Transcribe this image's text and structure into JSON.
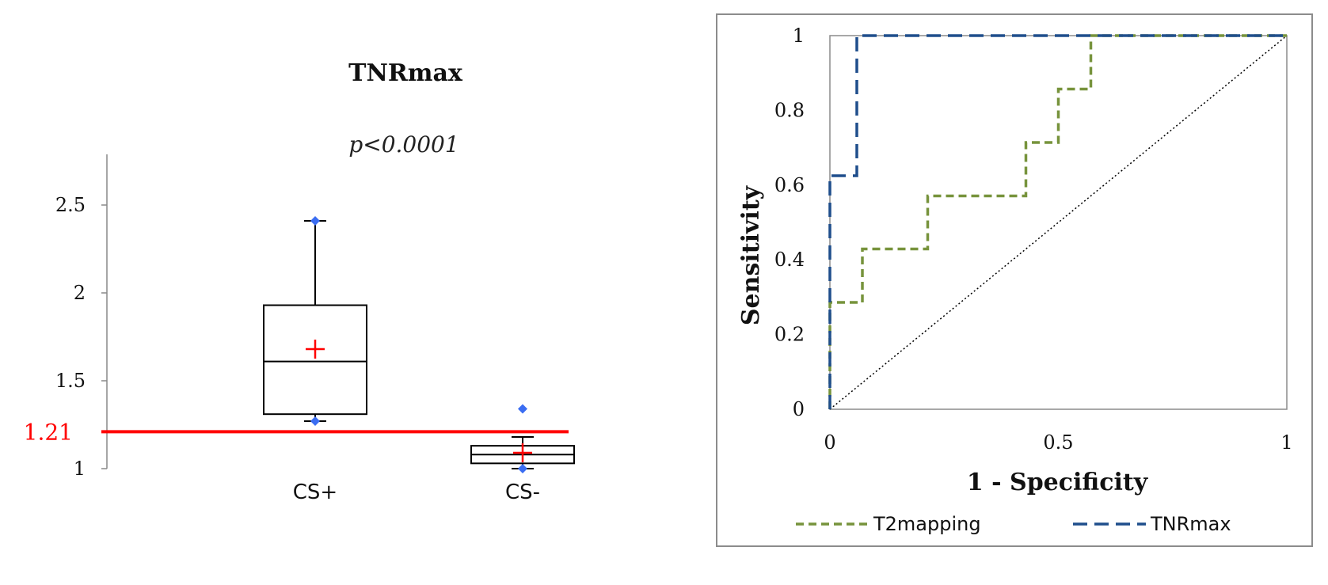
{
  "chart_data": [
    {
      "type": "box",
      "title": "TNRmax",
      "subtitle": "p<0.0001",
      "categories": [
        "CS+",
        "CS-"
      ],
      "yticks": [
        "1",
        "1.5",
        "2",
        "2.5"
      ],
      "ylim": [
        1,
        2.8
      ],
      "threshold": {
        "label": "1.21",
        "value": 1.21,
        "color": "#ff0000"
      },
      "boxes": [
        {
          "category": "CS+",
          "min": 1.27,
          "q1": 1.31,
          "median": 1.61,
          "q3": 1.93,
          "max": 2.41,
          "mean": 1.68,
          "outliers": [
            2.41,
            1.27
          ]
        },
        {
          "category": "CS-",
          "min": 1.0,
          "q1": 1.03,
          "median": 1.08,
          "q3": 1.13,
          "max": 1.18,
          "mean": 1.09,
          "outliers": [
            1.34,
            1.0
          ]
        }
      ],
      "colors": {
        "mean_marker": "#ff0000",
        "outlier": "#3b6df2",
        "box": "#000000"
      }
    },
    {
      "type": "line",
      "xlabel": "1 - Specificity",
      "ylabel": "Sensitivity",
      "xlim": [
        0,
        1
      ],
      "ylim": [
        0,
        1
      ],
      "xticks": [
        "0",
        "0.5",
        "1"
      ],
      "yticks": [
        "0",
        "0.2",
        "0.4",
        "0.6",
        "0.8",
        "1"
      ],
      "grid": false,
      "legend_position": "bottom",
      "series": [
        {
          "name": "T2mapping",
          "color": "#77933c",
          "dash": "dashed",
          "points": [
            [
              0,
              0
            ],
            [
              0,
              0.286
            ],
            [
              0.071,
              0.286
            ],
            [
              0.071,
              0.429
            ],
            [
              0.214,
              0.429
            ],
            [
              0.214,
              0.571
            ],
            [
              0.429,
              0.571
            ],
            [
              0.429,
              0.714
            ],
            [
              0.5,
              0.714
            ],
            [
              0.5,
              0.857
            ],
            [
              0.571,
              0.857
            ],
            [
              0.571,
              1
            ],
            [
              1,
              1
            ]
          ]
        },
        {
          "name": "TNRmax",
          "color": "#1f4e8c",
          "dash": "long-dashed",
          "points": [
            [
              0,
              0
            ],
            [
              0,
              0.625
            ],
            [
              0.059,
              0.625
            ],
            [
              0.059,
              1
            ],
            [
              1,
              1
            ]
          ]
        }
      ],
      "reference_line": {
        "points": [
          [
            0,
            0
          ],
          [
            1,
            1
          ]
        ],
        "color": "#000000",
        "style": "dotted"
      }
    }
  ]
}
